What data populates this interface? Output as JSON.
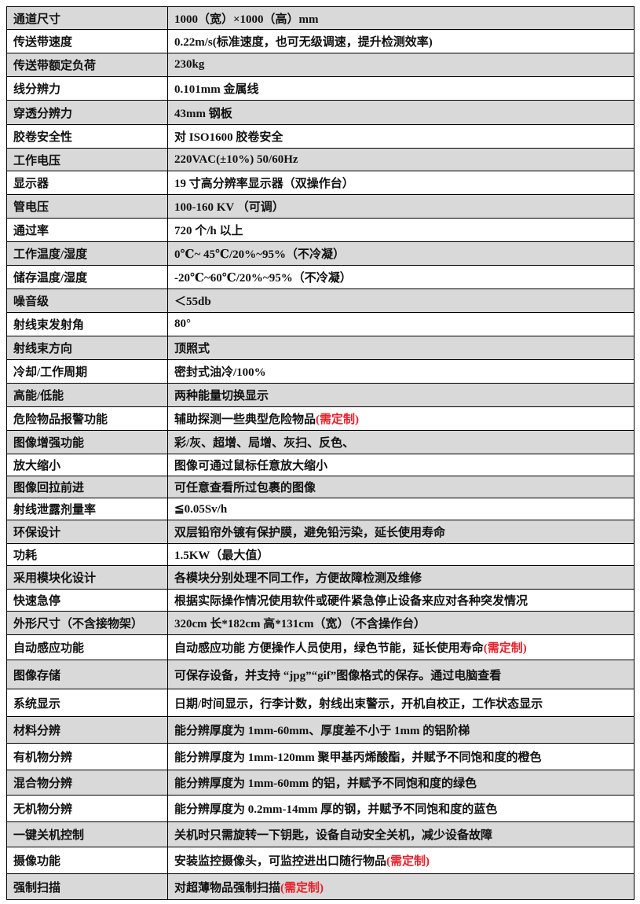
{
  "accent_color": "#e8202a",
  "rows": [
    {
      "k": "通道尺寸",
      "v": "1000（宽）×1000（高）mm"
    },
    {
      "k": "传送带速度",
      "v": "0.22m/s(标准速度，也可无级调速，提升检测效率)"
    },
    {
      "k": "传送带额定负荷",
      "v": "230kg"
    },
    {
      "k": "线分辨力",
      "v": "0.101mm 金属线"
    },
    {
      "k": "穿透分辨力",
      "v": "43mm 钢板"
    },
    {
      "k": "胶卷安全性",
      "v": "对 ISO1600 胶卷安全"
    },
    {
      "k": "工作电压",
      "v": "220VAC(±10%) 50/60Hz"
    },
    {
      "k": "显示器",
      "v": "19 寸高分辨率显示器（双操作台）"
    },
    {
      "k": "管电压",
      "v": "100-160 KV （可调）"
    },
    {
      "k": "通过率",
      "v": "720 个/h 以上"
    },
    {
      "k": "工作温度/湿度",
      "v": "0℃~ 45℃/20%~95%（不冷凝）"
    },
    {
      "k": "储存温度/湿度",
      "v": "-20℃~60℃/20%~95%（不冷凝）"
    },
    {
      "k": "噪音级",
      "v": "＜55db"
    },
    {
      "k": "射线束发射角",
      "v": "80°"
    },
    {
      "k": "射线束方向",
      "v": "顶照式"
    },
    {
      "k": "冷却/工作周期",
      "v": "密封式油冷/100%"
    },
    {
      "k": "高能/低能",
      "v": "两种能量切换显示"
    },
    {
      "k": "危险物品报警功能",
      "v": "辅助探测一些典型危险物品",
      "note": "(需定制)"
    },
    {
      "k": "图像增强功能",
      "v": "彩/灰、超增、局增、灰扫、反色、"
    },
    {
      "k": "放大缩小",
      "v": "图像可通过鼠标任意放大缩小"
    },
    {
      "k": "图像回拉前进",
      "v": "可任意查看所过包裹的图像"
    },
    {
      "k": "射线泄露剂量率",
      "v": "≦0.05Sv/h"
    },
    {
      "k": "环保设计",
      "v": "双层铅帘外镀有保护膜，避免铅污染，延长使用寿命"
    },
    {
      "k": "功耗",
      "v": "1.5KW（最大值）"
    },
    {
      "k": "采用模块化设计",
      "v": "各模块分别处理不同工作，方便故障检测及维修"
    },
    {
      "k": "快速急停",
      "v": "根据实际操作情况使用软件或硬件紧急停止设备来应对各种突发情况"
    },
    {
      "k": "外形尺寸（不含接物架）",
      "v": "320cm 长*182cm 高*131cm（宽）（不含操作台）"
    },
    {
      "k": "自动感应功能",
      "v": "自动感应功能 方便操作人员使用，绿色节能，延长使用寿命",
      "note": "(需定制)"
    },
    {
      "k": "图像存储",
      "v": "可保存设备，并支持 “jpg”“gif”图像格式的保存。通过电脑查看"
    },
    {
      "k": "系统显示",
      "v": "日期/时间显示，行李计数，射线出束警示，开机自校正，工作状态显示"
    },
    {
      "k": "材料分辨",
      "v": "能分辨厚度为 1mm-60mm、厚度差不小于 1mm 的铝阶梯"
    },
    {
      "k": "有机物分辨",
      "v": "能分辨厚度为 1mm-120mm 聚甲基丙烯酸酯，并赋予不同饱和度的橙色"
    },
    {
      "k": "混合物分辨",
      "v": "能分辨厚度为 1mm-60mm 的铝，并赋予不同饱和度的绿色"
    },
    {
      "k": "无机物分辨",
      "v": "能分辨厚度为 0.2mm-14mm 厚的钢，并赋予不同饱和度的蓝色"
    },
    {
      "k": "一键关机控制",
      "v": "关机时只需旋转一下钥匙，设备自动安全关机，减少设备故障"
    },
    {
      "k": "摄像功能",
      "v": "安装监控摄像头，可监控进出口随行物品",
      "note": "(需定制)"
    },
    {
      "k": "强制扫描",
      "v": "对超薄物品强制扫描",
      "note": "(需定制)"
    }
  ]
}
